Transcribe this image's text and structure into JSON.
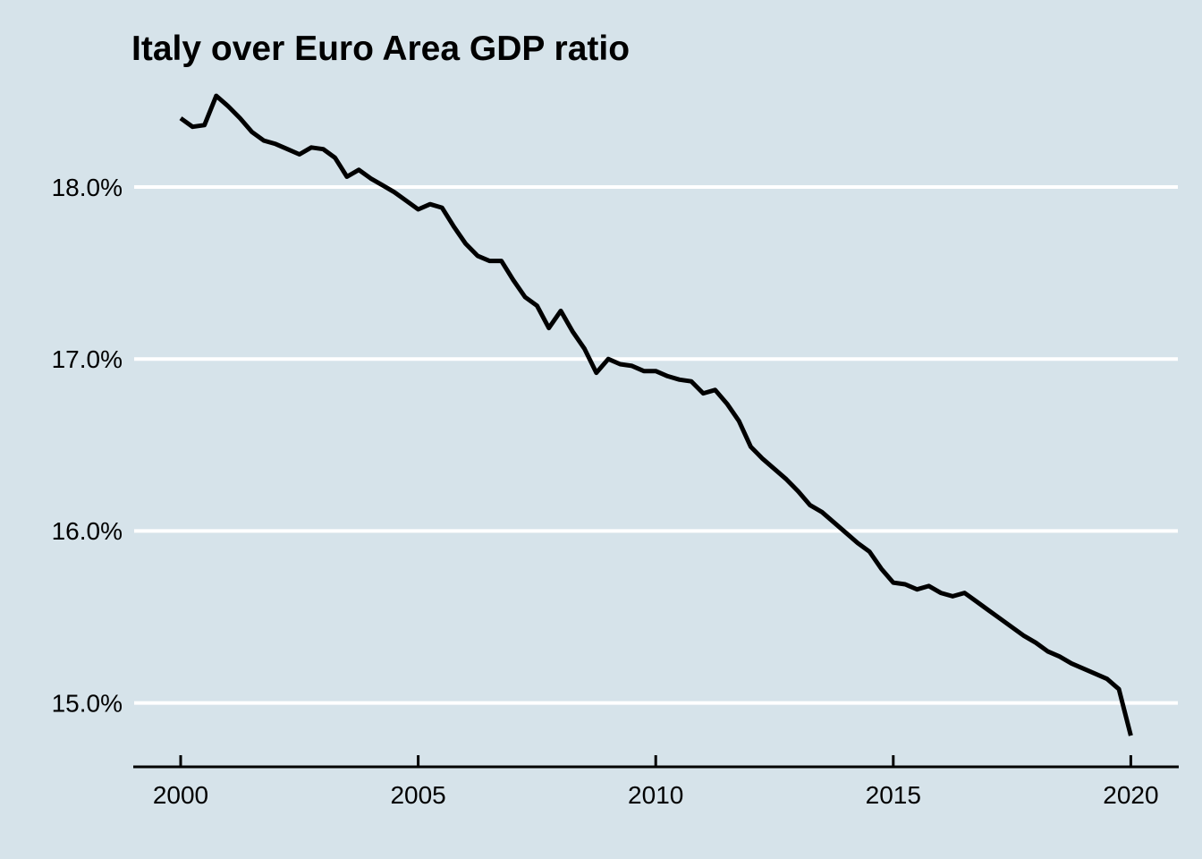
{
  "chart_data": {
    "type": "line",
    "title": "Italy over Euro Area GDP ratio",
    "xlabel": "",
    "ylabel": "",
    "unit": "%",
    "grid": {
      "horizontal": true,
      "vertical": false
    },
    "legend": {
      "shown": false
    },
    "x_axis": {
      "range_years": [
        2000,
        2020
      ],
      "ticks": [
        {
          "value": 2000,
          "label": "2000"
        },
        {
          "value": 2005,
          "label": "2005"
        },
        {
          "value": 2010,
          "label": "2010"
        },
        {
          "value": 2015,
          "label": "2015"
        },
        {
          "value": 2020,
          "label": "2020"
        }
      ]
    },
    "y_axis": {
      "displayed_range_pct": [
        14.63,
        18.62
      ],
      "ticks": [
        {
          "value": 15.0,
          "label": "15.0%"
        },
        {
          "value": 16.0,
          "label": "16.0%"
        },
        {
          "value": 17.0,
          "label": "17.0%"
        },
        {
          "value": 18.0,
          "label": "18.0%"
        }
      ]
    },
    "series": [
      {
        "name": "Italy over Euro Area GDP ratio",
        "frequency": "quarterly",
        "x_start_year": 2000.0,
        "x_step_years": 0.25,
        "x_end_year": 2020.0,
        "values": [
          18.4,
          18.35,
          18.36,
          18.53,
          18.47,
          18.4,
          18.32,
          18.27,
          18.25,
          18.22,
          18.19,
          18.23,
          18.22,
          18.17,
          18.06,
          18.1,
          18.05,
          18.01,
          17.97,
          17.92,
          17.87,
          17.9,
          17.88,
          17.77,
          17.67,
          17.6,
          17.57,
          17.57,
          17.46,
          17.36,
          17.31,
          17.18,
          17.28,
          17.16,
          17.06,
          16.92,
          17.0,
          16.97,
          16.96,
          16.93,
          16.93,
          16.9,
          16.88,
          16.87,
          16.8,
          16.82,
          16.74,
          16.64,
          16.49,
          16.42,
          16.36,
          16.3,
          16.23,
          16.15,
          16.11,
          16.05,
          15.99,
          15.93,
          15.88,
          15.78,
          15.7,
          15.69,
          15.66,
          15.68,
          15.64,
          15.62,
          15.64,
          15.59,
          15.54,
          15.49,
          15.44,
          15.39,
          15.35,
          15.3,
          15.27,
          15.23,
          15.2,
          15.17,
          15.14,
          15.08,
          14.81
        ]
      }
    ],
    "colors": {
      "background": "#d6e3ea",
      "line": "#000000",
      "grid": "#ffffff",
      "axis": "#000000",
      "text": "#000000"
    }
  }
}
